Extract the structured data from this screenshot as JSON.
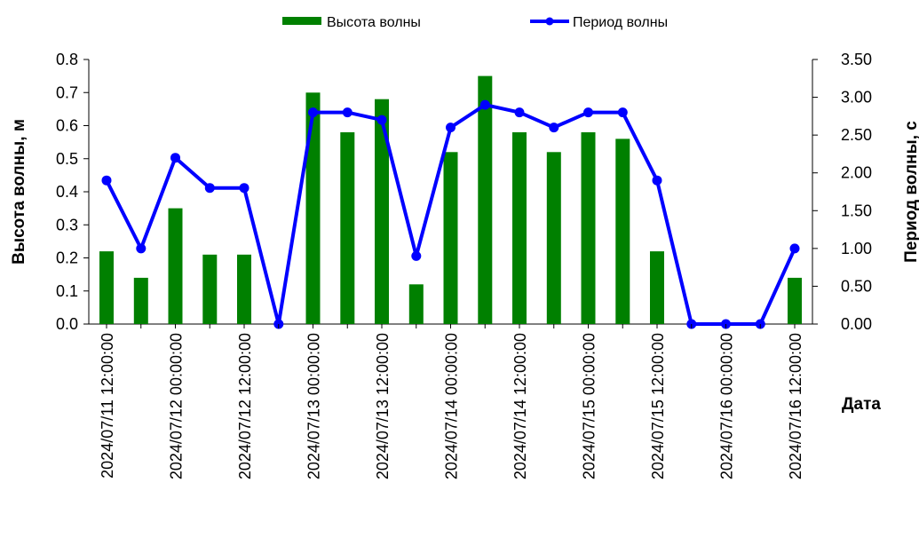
{
  "chart_data": {
    "type": "bar+line",
    "xlabel": "Дата",
    "ylabel_left": "Высота волны, м",
    "ylabel_right": "Период волны, с",
    "ylim_left": [
      0,
      0.8
    ],
    "ylim_right": [
      0,
      3.5
    ],
    "yticks_left": [
      "0.0",
      "0.1",
      "0.2",
      "0.3",
      "0.4",
      "0.5",
      "0.6",
      "0.7",
      "0.8"
    ],
    "yticks_right": [
      "0.00",
      "0.50",
      "1.00",
      "1.50",
      "2.00",
      "2.50",
      "3.00",
      "3.50"
    ],
    "x": [
      "2024/07/11 12:00:00",
      "2024/07/11 18:00:00",
      "2024/07/12 00:00:00",
      "2024/07/12 06:00:00",
      "2024/07/12 12:00:00",
      "2024/07/12 18:00:00",
      "2024/07/13 00:00:00",
      "2024/07/13 06:00:00",
      "2024/07/13 12:00:00",
      "2024/07/13 18:00:00",
      "2024/07/14 00:00:00",
      "2024/07/14 06:00:00",
      "2024/07/14 12:00:00",
      "2024/07/14 18:00:00",
      "2024/07/15 00:00:00",
      "2024/07/15 06:00:00",
      "2024/07/15 12:00:00",
      "2024/07/15 18:00:00",
      "2024/07/16 00:00:00",
      "2024/07/16 06:00:00",
      "2024/07/16 12:00:00"
    ],
    "x_tick_labels": [
      "2024/07/11 12:00:00",
      "2024/07/12 00:00:00",
      "2024/07/12 12:00:00",
      "2024/07/13 00:00:00",
      "2024/07/13 12:00:00",
      "2024/07/14 00:00:00",
      "2024/07/14 12:00:00",
      "2024/07/15 00:00:00",
      "2024/07/15 12:00:00",
      "2024/07/16 00:00:00",
      "2024/07/16 12:00:00"
    ],
    "series": [
      {
        "name": "Высота волны",
        "type": "bar",
        "axis": "left",
        "color": "#008000",
        "values": [
          0.22,
          0.14,
          0.35,
          0.21,
          0.21,
          0.0,
          0.7,
          0.58,
          0.68,
          0.12,
          0.52,
          0.75,
          0.58,
          0.52,
          0.58,
          0.56,
          0.22,
          0.0,
          0.0,
          0.0,
          0.14
        ]
      },
      {
        "name": "Период волны",
        "type": "line",
        "axis": "right",
        "color": "#0000ff",
        "values": [
          1.9,
          1.0,
          2.2,
          1.8,
          1.8,
          0.0,
          2.8,
          2.8,
          2.7,
          0.9,
          2.6,
          2.9,
          2.8,
          2.6,
          2.8,
          2.8,
          1.9,
          0.0,
          0.0,
          0.0,
          1.0
        ]
      }
    ],
    "legend_position": "top-center",
    "grid": false
  }
}
